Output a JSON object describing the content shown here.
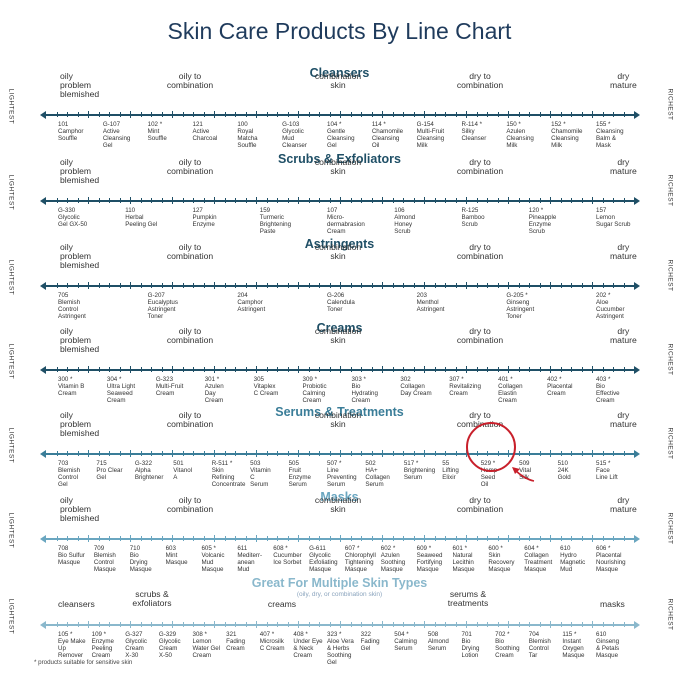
{
  "title": "Skin Care Products By Line Chart",
  "axis": {
    "left": "LIGHTEST",
    "right": "RICHEST"
  },
  "footnote": "* products suitable for sensitive skin",
  "multi_subtitle": "(oily, dry, or combination skin)",
  "colors": {
    "cleansers": "#1f4f66",
    "scrubs": "#1f4f66",
    "astringents": "#1f4f66",
    "creams": "#1f4f66",
    "serums": "#3a7d98",
    "masks": "#6aa6c0",
    "multi": "#8ab8cc"
  },
  "sections": [
    {
      "title": "Cleansers",
      "skin": [
        "oily\nproblem\nblemished",
        "oily to\ncombination",
        "combination\nskin",
        "dry to\ncombination",
        "dry\nmature"
      ],
      "products": [
        {
          "label": "101\nCamphor\nSouffle"
        },
        {
          "label": "G-107\nActive\nCleansing\nGel"
        },
        {
          "label": "102 *\nMint\nSouffle"
        },
        {
          "label": "121\nActive\nCharcoal"
        },
        {
          "label": "100\nRoyal\nMatcha\nSouffle"
        },
        {
          "label": "G-103\nGlycolic\nMud\nCleanser"
        },
        {
          "label": "104 *\nGentle\nCleansing\nGel"
        },
        {
          "label": "114 *\nChamomile\nCleansing\nOil"
        },
        {
          "label": "G-154\nMulti-Fruit\nCleansing\nMilk"
        },
        {
          "label": "R-114 *\nSilky\nCleanser"
        },
        {
          "label": "150 *\nAzulen\nCleansing\nMilk"
        },
        {
          "label": "152 *\nChamomile\nCleansing\nMilk"
        },
        {
          "label": "155 *\nCleansing\nBalm &\nMask"
        }
      ]
    },
    {
      "title": "Scrubs & Exfoliators",
      "skin": [
        "oily\nproblem\nblemished",
        "oily to\ncombination",
        "combination\nskin",
        "dry to\ncombination",
        "dry\nmature"
      ],
      "products": [
        {
          "label": "G-330\nGlycolic\nGel GX-50"
        },
        {
          "label": "110\nHerbal\nPeeling Gel"
        },
        {
          "label": "127\nPumpkin\nEnzyme"
        },
        {
          "label": "159\nTurmeric\nBrightening\nPaste"
        },
        {
          "label": "107\nMicro-\ndermabrasion\nCream"
        },
        {
          "label": "106\nAlmond\nHoney\nScrub"
        },
        {
          "label": "R-125\nBamboo\nScrub"
        },
        {
          "label": "120 *\nPineapple\nEnzyme\nScrub"
        },
        {
          "label": "157\nLemon\nSugar Scrub"
        }
      ]
    },
    {
      "title": "Astringents",
      "skin": [
        "oily\nproblem\nblemished",
        "oily to\ncombination",
        "combination\nskin",
        "dry to\ncombination",
        "dry\nmature"
      ],
      "products": [
        {
          "label": "705\nBlemish\nControl\nAstringent"
        },
        {
          "label": "G-207\nEucalyptus\nAstringent\nToner"
        },
        {
          "label": "204\nCamphor\nAstringent"
        },
        {
          "label": "G-206\nCalendula\nToner"
        },
        {
          "label": "203\nMenthol\nAstringent"
        },
        {
          "label": "G-205 *\nGinseng\nAstringent\nToner"
        },
        {
          "label": "202 *\nAloe\nCucumber\nAstringent"
        }
      ]
    },
    {
      "title": "Creams",
      "skin": [
        "oily\nproblem\nblemished",
        "oily to\ncombination",
        "combination\nskin",
        "dry to\ncombination",
        "dry\nmature"
      ],
      "products": [
        {
          "label": "300 *\nVitamin B\nCream"
        },
        {
          "label": "304 *\nUltra Light\nSeaweed\nCream"
        },
        {
          "label": "G-323\nMulti-Fruit\nCream"
        },
        {
          "label": "301 *\nAzulen\nDay\nCream"
        },
        {
          "label": "305\nVitaplex\nC Cream"
        },
        {
          "label": "309 *\nProbiotic\nCalming\nCream"
        },
        {
          "label": "303 *\nBio\nHydrating\nCream"
        },
        {
          "label": "302\nCollagen\nDay Cream"
        },
        {
          "label": "307 *\nRevitalizing\nCream"
        },
        {
          "label": "401 *\nCollagen\nElastin\nCream"
        },
        {
          "label": "402 *\nPlacental\nCream"
        },
        {
          "label": "403 *\nBio\nEffective\nCream"
        }
      ]
    },
    {
      "title": "Serums & Treatments",
      "skin": [
        "oily\nproblem\nblemished",
        "oily to\ncombination",
        "combination\nskin",
        "dry to\ncombination",
        "dry\nmature"
      ],
      "products": [
        {
          "label": "703\nBlemish\nControl\nGel"
        },
        {
          "label": "715\nPro Clear\nGel"
        },
        {
          "label": "G-322\nAlpha\nBrightener"
        },
        {
          "label": "501\nVitanol\nA"
        },
        {
          "label": "R-511 *\nSkin\nRefining\nConcentrate"
        },
        {
          "label": "503\nVitamin\nC\nSerum"
        },
        {
          "label": "505\nFruit\nEnzyme\nSerum"
        },
        {
          "label": "507 *\nLine\nPreventing\nSerum"
        },
        {
          "label": "502\nHA+\nCollagen\nSerum"
        },
        {
          "label": "517 *\nBrightening\nSerum"
        },
        {
          "label": "55\nLifting\nElixir"
        },
        {
          "label": "529 *\nHemp\nSeed\nOil"
        },
        {
          "label": "509\nVital\nSilk"
        },
        {
          "label": "510\n24K\nGold"
        },
        {
          "label": "515 *\nFace\nLine Lift"
        }
      ]
    },
    {
      "title": "Masks",
      "skin": [
        "oily\nproblem\nblemished",
        "oily to\ncombination",
        "combination\nskin",
        "dry to\ncombination",
        "dry\nmature"
      ],
      "products": [
        {
          "label": "708\nBio Sulfur\nMasque"
        },
        {
          "label": "709\nBlemish\nControl\nMasque"
        },
        {
          "label": "710\nBio\nDrying\nMasque"
        },
        {
          "label": "603\nMint\nMasque"
        },
        {
          "label": "605 *\nVolcanic\nMud\nMasque"
        },
        {
          "label": "611\nMediterr-\nanean\nMud"
        },
        {
          "label": "608 *\nCucumber\nIce Sorbet"
        },
        {
          "label": "G-611\nGlycolic\nExfoliating\nMasque"
        },
        {
          "label": "607 *\nChlorophyll\nTightening\nMasque"
        },
        {
          "label": "602 *\nAzulen\nSoothing\nMasque"
        },
        {
          "label": "609 *\nSeaweed\nFortifying\nMasque"
        },
        {
          "label": "601 *\nNatural\nLecithin\nMasque"
        },
        {
          "label": "600 *\nSkin\nRecovery\nMasque"
        },
        {
          "label": "604 *\nCollagen\nTreatment\nMasque"
        },
        {
          "label": "610\nHydro\nMagnetic\nMud"
        },
        {
          "label": "606 *\nPlacental\nNourishing\nMasque"
        }
      ]
    },
    {
      "title": "Great For Multiple Skin Types",
      "skin": [
        "cleansers",
        "scrubs &\nexfoliators",
        "creams",
        "serums &\ntreatments",
        "masks"
      ],
      "products": [
        {
          "label": "105 *\nEye Make\nUp\nRemover"
        },
        {
          "label": "109 *\nEnzyme\nPeeling\nCream"
        },
        {
          "label": "G-327\nGlycolic\nCream\nX-30"
        },
        {
          "label": "G-329\nGlycolic\nCream\nX-50"
        },
        {
          "label": "308 *\nLemon\nWater Gel\nCream"
        },
        {
          "label": "321\nFading\nCream"
        },
        {
          "label": "407 *\nMicrosilk\nC Cream"
        },
        {
          "label": "408 *\nUnder Eye\n& Neck\nCream"
        },
        {
          "label": "323 *\nAloe Vera\n& Herbs\nSoothing\nGel"
        },
        {
          "label": "322\nFading\nGel"
        },
        {
          "label": "504 *\nCalming\nSerum"
        },
        {
          "label": "508\nAlmond\nSerum"
        },
        {
          "label": "701\nBio\nDrying\nLotion"
        },
        {
          "label": "702 *\nBio\nSoothing\nCream"
        },
        {
          "label": "704\nBlemish\nControl\nTar"
        },
        {
          "label": "115 *\nInstant\nOxygen\nMasque"
        },
        {
          "label": "610\nGinseng\n& Petals\nMasque"
        }
      ]
    }
  ]
}
